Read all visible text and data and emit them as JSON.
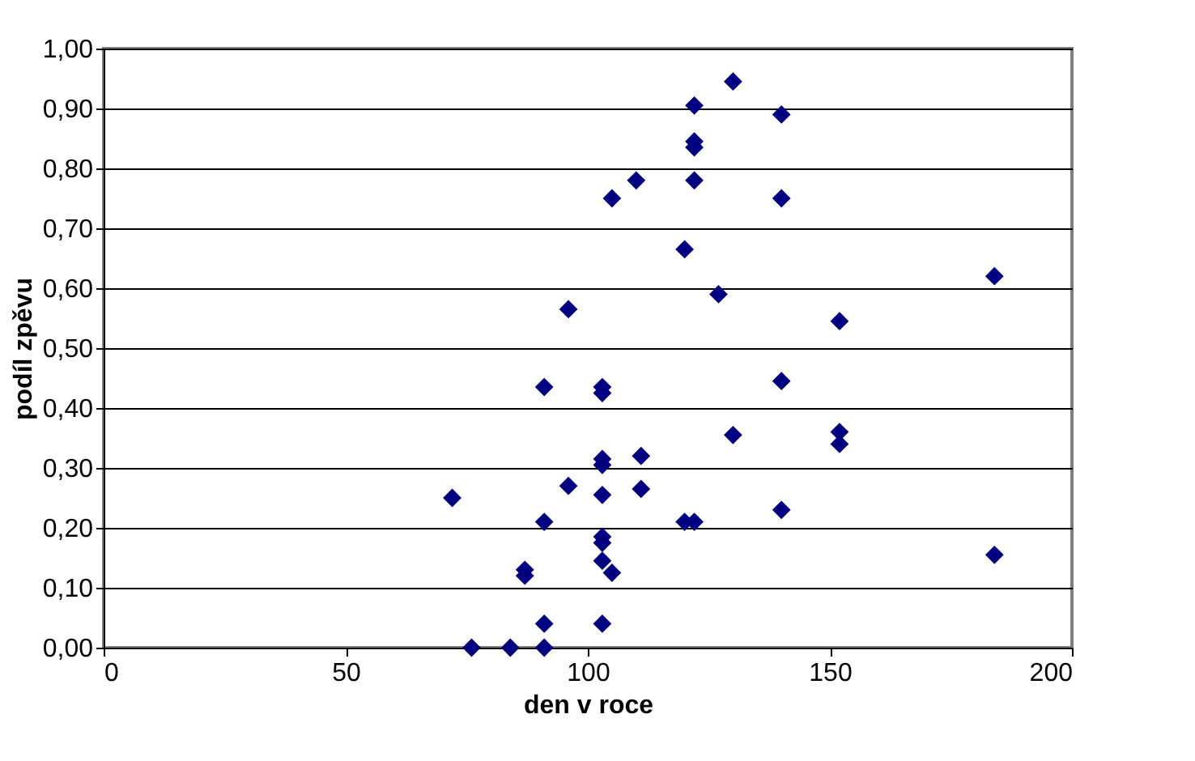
{
  "chart_data": {
    "type": "scatter",
    "xlabel": "den v roce",
    "ylabel": "podíl zpěvu",
    "xlim": [
      0,
      200
    ],
    "xticks": [
      0,
      50,
      100,
      150,
      200
    ],
    "ylim": [
      0,
      1
    ],
    "yticks": [
      {
        "value": 0,
        "label": "0,00"
      },
      {
        "value": 0.1,
        "label": "0,10"
      },
      {
        "value": 0.2,
        "label": "0,20"
      },
      {
        "value": 0.3,
        "label": "0,30"
      },
      {
        "value": 0.4,
        "label": "0,40"
      },
      {
        "value": 0.5,
        "label": "0,50"
      },
      {
        "value": 0.6,
        "label": "0,60"
      },
      {
        "value": 0.7,
        "label": "0,70"
      },
      {
        "value": 0.8,
        "label": "0,80"
      },
      {
        "value": 0.9,
        "label": "0,90"
      },
      {
        "value": 1,
        "label": "1,00"
      }
    ],
    "grid": "y",
    "marker": "diamond",
    "x": [
      72,
      76,
      84,
      87,
      87,
      91,
      91,
      91,
      91,
      96,
      96,
      103,
      103,
      103,
      103,
      103,
      103,
      103,
      103,
      103,
      105,
      105,
      110,
      111,
      111,
      120,
      120,
      122,
      122,
      122,
      122,
      122,
      127,
      130,
      130,
      140,
      140,
      140,
      140,
      152,
      152,
      152,
      184,
      184
    ],
    "series": [
      {
        "color": "#000080",
        "values": [
          0.25,
          0.0,
          0.0,
          0.13,
          0.12,
          0.435,
          0.21,
          0.04,
          0.0,
          0.565,
          0.27,
          0.435,
          0.425,
          0.315,
          0.305,
          0.255,
          0.185,
          0.175,
          0.145,
          0.04,
          0.75,
          0.125,
          0.78,
          0.32,
          0.265,
          0.665,
          0.21,
          0.21,
          0.905,
          0.845,
          0.835,
          0.78,
          0.59,
          0.945,
          0.355,
          0.89,
          0.75,
          0.445,
          0.23,
          0.545,
          0.36,
          0.34,
          0.62,
          0.155
        ]
      }
    ]
  }
}
